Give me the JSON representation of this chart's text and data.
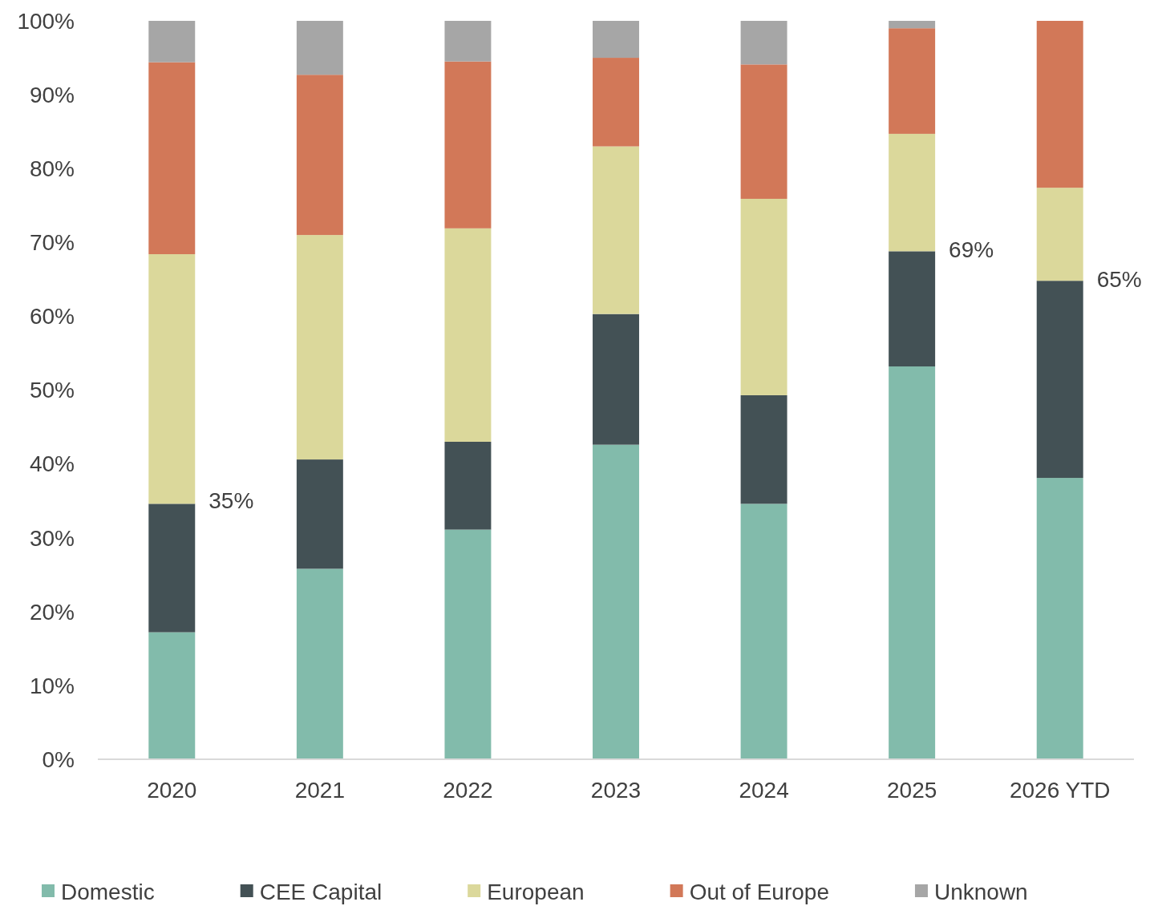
{
  "chart_data": {
    "type": "bar",
    "stacked": true,
    "categories": [
      "2020",
      "2021",
      "2022",
      "2023",
      "2024",
      "2025",
      "2026 YTD"
    ],
    "series": [
      {
        "name": "Domestic",
        "color": "#82bbab",
        "values": [
          17.2,
          25.8,
          31.1,
          42.6,
          34.6,
          53.2,
          38.1
        ]
      },
      {
        "name": "CEE Capital",
        "color": "#435155",
        "values": [
          17.4,
          14.8,
          11.9,
          17.7,
          14.7,
          15.6,
          26.7
        ]
      },
      {
        "name": "European",
        "color": "#dbd89b",
        "values": [
          33.8,
          30.4,
          28.9,
          22.7,
          26.6,
          15.9,
          12.6
        ]
      },
      {
        "name": "Out of Europe",
        "color": "#d27858",
        "values": [
          26.0,
          21.7,
          22.6,
          12.0,
          18.2,
          14.3,
          22.6
        ]
      },
      {
        "name": "Unknown",
        "color": "#a6a6a6",
        "values": [
          5.6,
          7.3,
          5.5,
          5.0,
          5.9,
          1.0,
          0
        ]
      }
    ],
    "ylim": [
      0,
      100
    ],
    "yticks": [
      {
        "value": 0,
        "label": "0%"
      },
      {
        "value": 10,
        "label": "10%"
      },
      {
        "value": 20,
        "label": "20%"
      },
      {
        "value": 30,
        "label": "30%"
      },
      {
        "value": 40,
        "label": "40%"
      },
      {
        "value": 50,
        "label": "50%"
      },
      {
        "value": 60,
        "label": "60%"
      },
      {
        "value": 70,
        "label": "70%"
      },
      {
        "value": 80,
        "label": "80%"
      },
      {
        "value": 90,
        "label": "90%"
      },
      {
        "value": 100,
        "label": "100%"
      }
    ],
    "annotations": [
      {
        "text": "35%",
        "x": "2020",
        "y": 35
      },
      {
        "text": "69%",
        "x": "2025",
        "y": 69
      },
      {
        "text": "65%",
        "x": "2026 YTD",
        "y": 65
      }
    ],
    "grid": false,
    "legend": "bottom"
  }
}
